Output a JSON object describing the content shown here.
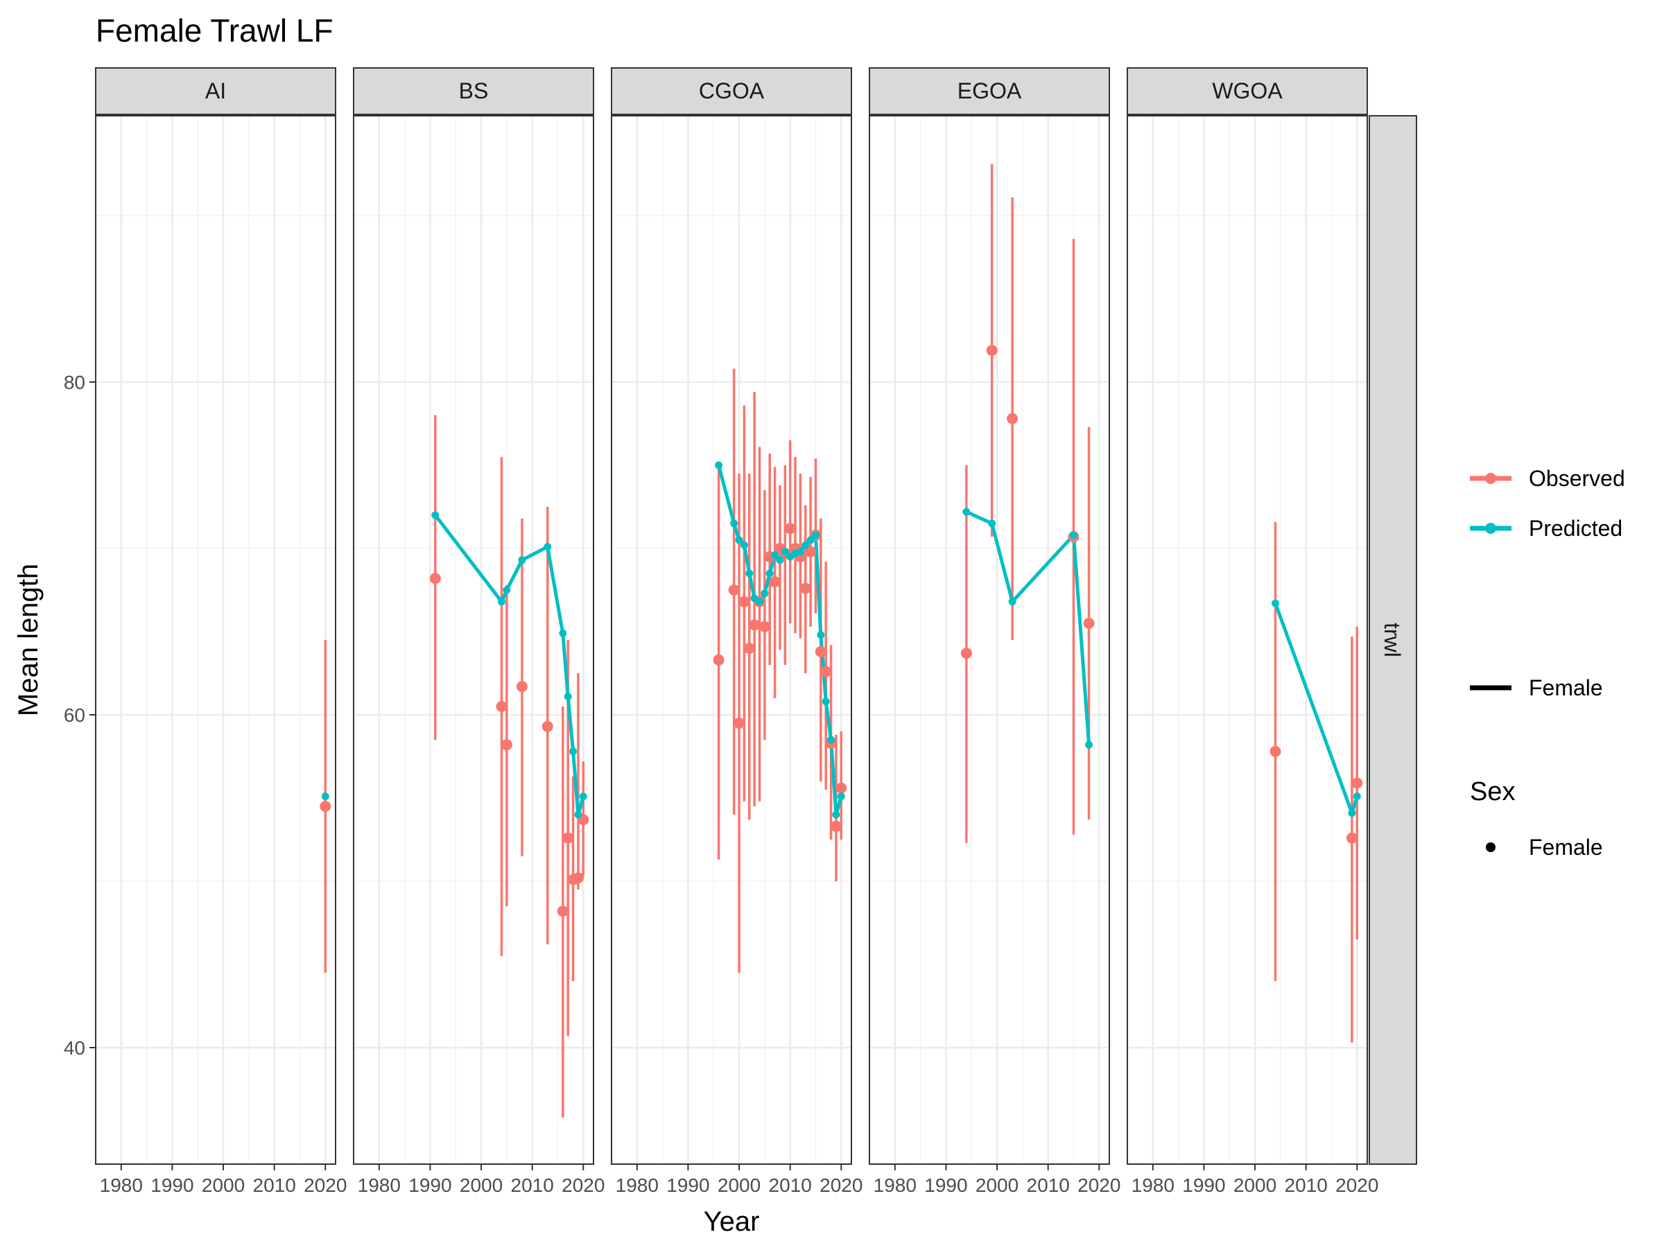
{
  "chart_data": {
    "type": "line",
    "title": "Female Trawl LF",
    "xlabel": "Year",
    "ylabel": "Mean length",
    "facet_strip_right": "trwl",
    "xlim": [
      1975,
      2022
    ],
    "ylim": [
      33,
      96
    ],
    "x_ticks": [
      "1980",
      "1990",
      "2000",
      "2010",
      "2020"
    ],
    "y_ticks": [
      "40",
      "60",
      "80"
    ],
    "grid": true,
    "legend_position": "right",
    "colors": {
      "observed": "#F8766D",
      "predicted": "#00BFC4"
    },
    "legend": {
      "color_items": [
        {
          "label": "Observed",
          "color": "#F8766D"
        },
        {
          "label": "Predicted",
          "color": "#00BFC4"
        }
      ],
      "line_item": {
        "label": "Female"
      },
      "shape_title": "Sex",
      "shape_item": {
        "label": "Female"
      }
    },
    "panels": [
      {
        "name": "AI",
        "observed": [
          {
            "x": 2020,
            "y": 54.5,
            "lo": 44.5,
            "hi": 64.5
          }
        ],
        "predicted": [
          {
            "x": 2020,
            "y": 55.1
          }
        ]
      },
      {
        "name": "BS",
        "observed": [
          {
            "x": 1991,
            "y": 68.2,
            "lo": 58.5,
            "hi": 78.0
          },
          {
            "x": 2004,
            "y": 60.5,
            "lo": 45.5,
            "hi": 75.5
          },
          {
            "x": 2005,
            "y": 58.2,
            "lo": 48.5,
            "hi": 67.8
          },
          {
            "x": 2008,
            "y": 61.7,
            "lo": 51.5,
            "hi": 71.8
          },
          {
            "x": 2013,
            "y": 59.3,
            "lo": 46.2,
            "hi": 72.5
          },
          {
            "x": 2016,
            "y": 48.2,
            "lo": 35.8,
            "hi": 60.5
          },
          {
            "x": 2017,
            "y": 52.6,
            "lo": 40.7,
            "hi": 64.5
          },
          {
            "x": 2018,
            "y": 50.1,
            "lo": 44.0,
            "hi": 56.3
          },
          {
            "x": 2019,
            "y": 50.2,
            "lo": 49.5,
            "hi": 62.5
          },
          {
            "x": 2020,
            "y": 53.7,
            "lo": 50.3,
            "hi": 57.2
          }
        ],
        "predicted": [
          {
            "x": 1991,
            "y": 72.0
          },
          {
            "x": 2004,
            "y": 66.8
          },
          {
            "x": 2005,
            "y": 67.5
          },
          {
            "x": 2008,
            "y": 69.3
          },
          {
            "x": 2013,
            "y": 70.1
          },
          {
            "x": 2016,
            "y": 64.9
          },
          {
            "x": 2017,
            "y": 61.1
          },
          {
            "x": 2018,
            "y": 57.8
          },
          {
            "x": 2019,
            "y": 54.0
          },
          {
            "x": 2020,
            "y": 55.1
          }
        ]
      },
      {
        "name": "CGOA",
        "observed": [
          {
            "x": 1996,
            "y": 63.3,
            "lo": 51.3,
            "hi": 75.0
          },
          {
            "x": 1999,
            "y": 67.5,
            "lo": 54.0,
            "hi": 80.8
          },
          {
            "x": 2000,
            "y": 59.5,
            "lo": 44.5,
            "hi": 74.5
          },
          {
            "x": 2001,
            "y": 66.8,
            "lo": 54.8,
            "hi": 78.6
          },
          {
            "x": 2002,
            "y": 64.0,
            "lo": 53.7,
            "hi": 74.5
          },
          {
            "x": 2003,
            "y": 65.4,
            "lo": 54.5,
            "hi": 79.4
          },
          {
            "x": 2004,
            "y": 66.8,
            "lo": 54.8,
            "hi": 76.1
          },
          {
            "x": 2005,
            "y": 65.3,
            "lo": 58.5,
            "hi": 73.5
          },
          {
            "x": 2006,
            "y": 69.5,
            "lo": 63.0,
            "hi": 75.7
          },
          {
            "x": 2007,
            "y": 68.0,
            "lo": 61.0,
            "hi": 74.9
          },
          {
            "x": 2008,
            "y": 70.0,
            "lo": 63.9,
            "hi": 73.8
          },
          {
            "x": 2009,
            "y": 69.7,
            "lo": 63.0,
            "hi": 75.0
          },
          {
            "x": 2010,
            "y": 71.2,
            "lo": 65.5,
            "hi": 76.5
          },
          {
            "x": 2011,
            "y": 70.0,
            "lo": 64.9,
            "hi": 75.5
          },
          {
            "x": 2012,
            "y": 69.5,
            "lo": 64.6,
            "hi": 74.5
          },
          {
            "x": 2013,
            "y": 67.6,
            "lo": 62.5,
            "hi": 72.6
          },
          {
            "x": 2014,
            "y": 69.8,
            "lo": 65.3,
            "hi": 74.3
          },
          {
            "x": 2015,
            "y": 70.8,
            "lo": 66.1,
            "hi": 75.4
          },
          {
            "x": 2016,
            "y": 63.8,
            "lo": 56.0,
            "hi": 71.8
          },
          {
            "x": 2017,
            "y": 62.6,
            "lo": 55.5,
            "hi": 69.2
          },
          {
            "x": 2018,
            "y": 58.3,
            "lo": 52.5,
            "hi": 64.2
          },
          {
            "x": 2019,
            "y": 53.3,
            "lo": 50.0,
            "hi": 58.8
          },
          {
            "x": 2020,
            "y": 55.6,
            "lo": 52.5,
            "hi": 59.0
          }
        ],
        "predicted": [
          {
            "x": 1996,
            "y": 75.0
          },
          {
            "x": 1999,
            "y": 71.5
          },
          {
            "x": 2000,
            "y": 70.5
          },
          {
            "x": 2001,
            "y": 70.2
          },
          {
            "x": 2002,
            "y": 68.5
          },
          {
            "x": 2003,
            "y": 67.0
          },
          {
            "x": 2004,
            "y": 66.8
          },
          {
            "x": 2005,
            "y": 67.3
          },
          {
            "x": 2006,
            "y": 68.5
          },
          {
            "x": 2007,
            "y": 69.6
          },
          {
            "x": 2008,
            "y": 69.3
          },
          {
            "x": 2009,
            "y": 69.8
          },
          {
            "x": 2010,
            "y": 69.5
          },
          {
            "x": 2011,
            "y": 69.7
          },
          {
            "x": 2012,
            "y": 69.8
          },
          {
            "x": 2013,
            "y": 70.2
          },
          {
            "x": 2014,
            "y": 70.5
          },
          {
            "x": 2015,
            "y": 70.8
          },
          {
            "x": 2016,
            "y": 64.8
          },
          {
            "x": 2017,
            "y": 60.8
          },
          {
            "x": 2018,
            "y": 58.5
          },
          {
            "x": 2019,
            "y": 54.0
          },
          {
            "x": 2020,
            "y": 55.1
          }
        ]
      },
      {
        "name": "EGOA",
        "observed": [
          {
            "x": 1994,
            "y": 63.7,
            "lo": 52.3,
            "hi": 75.0
          },
          {
            "x": 1999,
            "y": 81.9,
            "lo": 70.7,
            "hi": 93.1
          },
          {
            "x": 2003,
            "y": 77.8,
            "lo": 64.5,
            "hi": 91.1
          },
          {
            "x": 2015,
            "y": 70.7,
            "lo": 52.8,
            "hi": 88.6
          },
          {
            "x": 2018,
            "y": 65.5,
            "lo": 53.7,
            "hi": 77.3
          }
        ],
        "predicted": [
          {
            "x": 1994,
            "y": 72.2
          },
          {
            "x": 1999,
            "y": 71.5
          },
          {
            "x": 2003,
            "y": 66.8
          },
          {
            "x": 2015,
            "y": 70.8
          },
          {
            "x": 2018,
            "y": 58.2
          }
        ]
      },
      {
        "name": "WGOA",
        "observed": [
          {
            "x": 2004,
            "y": 57.8,
            "lo": 44.0,
            "hi": 71.6
          },
          {
            "x": 2019,
            "y": 52.6,
            "lo": 40.3,
            "hi": 64.7
          },
          {
            "x": 2020,
            "y": 55.9,
            "lo": 46.5,
            "hi": 65.3
          }
        ],
        "predicted": [
          {
            "x": 2004,
            "y": 66.7
          },
          {
            "x": 2019,
            "y": 54.1
          },
          {
            "x": 2020,
            "y": 55.1
          }
        ]
      }
    ]
  }
}
